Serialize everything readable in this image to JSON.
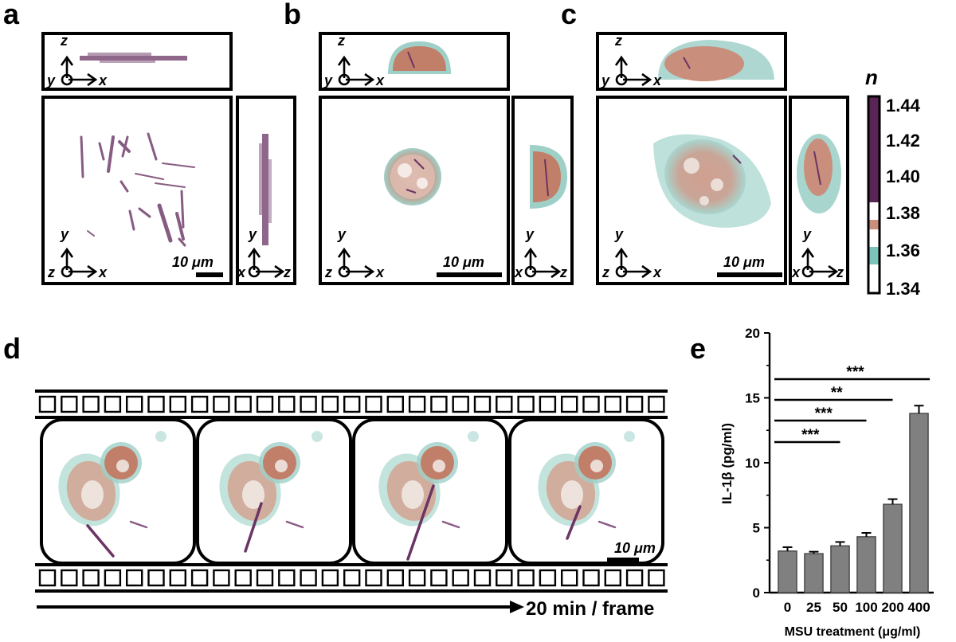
{
  "panels": {
    "a": "a",
    "b": "b",
    "c": "c",
    "d": "d",
    "e": "e"
  },
  "axes_labels": {
    "x": "x",
    "y": "y",
    "z": "z"
  },
  "scalebar": "10 μm",
  "colorbar": {
    "symbol": "n",
    "ticks": [
      "1.44",
      "1.42",
      "1.40",
      "1.38",
      "1.36",
      "1.34"
    ],
    "colors": {
      "purple": "#5a2456",
      "salmon": "#c98e7c",
      "teal": "#7cc4bb"
    }
  },
  "timeline_label": "20 min / frame",
  "chart_data": {
    "type": "bar",
    "categories": [
      "0",
      "25",
      "50",
      "100",
      "200",
      "400"
    ],
    "values": [
      3.2,
      3.0,
      3.6,
      4.3,
      6.8,
      13.8
    ],
    "errors": [
      0.3,
      0.15,
      0.3,
      0.3,
      0.4,
      0.6
    ],
    "xlabel": "MSU treatment (μg/ml)",
    "ylabel": "IL-1β (pg/ml)",
    "ylim": [
      0,
      20
    ],
    "yticks": [
      "0",
      "5",
      "10",
      "15",
      "20"
    ],
    "bar_color": "#808080",
    "significance": [
      {
        "from": "0",
        "to": "50",
        "label": "***"
      },
      {
        "from": "0",
        "to": "100",
        "label": "***"
      },
      {
        "from": "0",
        "to": "200",
        "label": "**"
      },
      {
        "from": "0",
        "to": "400",
        "label": "***"
      }
    ]
  }
}
